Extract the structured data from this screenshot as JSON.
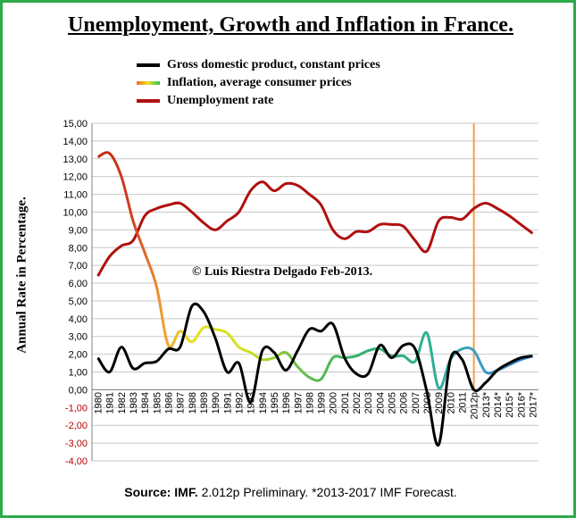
{
  "title": "Unemployment, Growth and Inflation in France.",
  "legend": [
    {
      "label": "Gross domestic product, constant prices",
      "color": "#000000"
    },
    {
      "label": "Inflation, average consumer prices",
      "color": "#f0a020"
    },
    {
      "label": "Unemployment rate",
      "color": "#b01010"
    }
  ],
  "ylabel": "Annual Rate in Percentage.",
  "copyright": "© Luis Riestra Delgado Feb-2013.",
  "source_bold": "Source: IMF.",
  "source_rest": " 2.012p Preliminary. *2013-2017 IMF Forecast.",
  "chart_data": {
    "type": "line",
    "x": [
      "1980",
      "1981",
      "1982",
      "1983",
      "1984",
      "1985",
      "1986",
      "1987",
      "1988",
      "1989",
      "1990",
      "1991",
      "1992",
      "1993",
      "1994",
      "1995",
      "1996",
      "1997",
      "1998",
      "1999",
      "2000",
      "2001",
      "2002",
      "2003",
      "2004",
      "2005",
      "2006",
      "2007",
      "2008",
      "2009",
      "2010",
      "2011",
      "2012p",
      "2013*",
      "2014*",
      "2015*",
      "2016*",
      "2017*"
    ],
    "ylim": [
      -4,
      15
    ],
    "ytick_step": 1,
    "grid": true,
    "series": [
      {
        "name": "Gross domestic product, constant prices",
        "color": "#000000",
        "values": [
          1.8,
          1.0,
          2.4,
          1.2,
          1.5,
          1.6,
          2.3,
          2.4,
          4.7,
          4.4,
          2.9,
          1.0,
          1.5,
          -0.7,
          2.2,
          2.1,
          1.1,
          2.2,
          3.4,
          3.3,
          3.7,
          1.8,
          0.9,
          0.9,
          2.5,
          1.8,
          2.5,
          2.3,
          -0.1,
          -3.1,
          1.7,
          1.7,
          0.0,
          0.4,
          1.1,
          1.5,
          1.8,
          1.9
        ]
      },
      {
        "name": "Inflation, average consumer prices",
        "color": "#f0a020",
        "values": [
          13.1,
          13.3,
          12.0,
          9.5,
          7.7,
          5.8,
          2.5,
          3.3,
          2.7,
          3.5,
          3.4,
          3.2,
          2.4,
          2.1,
          1.7,
          1.8,
          2.1,
          1.3,
          0.7,
          0.6,
          1.8,
          1.8,
          1.9,
          2.2,
          2.3,
          1.9,
          1.9,
          1.6,
          3.2,
          0.1,
          1.7,
          2.3,
          2.2,
          1.0,
          1.1,
          1.4,
          1.7,
          1.9
        ]
      },
      {
        "name": "Unemployment rate",
        "color": "#b01010",
        "values": [
          6.4,
          7.5,
          8.1,
          8.4,
          9.8,
          10.2,
          10.4,
          10.5,
          10.0,
          9.4,
          9.0,
          9.5,
          10.0,
          11.2,
          11.7,
          11.2,
          11.6,
          11.5,
          11.0,
          10.4,
          9.0,
          8.5,
          8.9,
          8.9,
          9.3,
          9.3,
          9.2,
          8.4,
          7.8,
          9.5,
          9.7,
          9.6,
          10.2,
          10.5,
          10.2,
          9.8,
          9.3,
          8.8
        ]
      }
    ]
  }
}
